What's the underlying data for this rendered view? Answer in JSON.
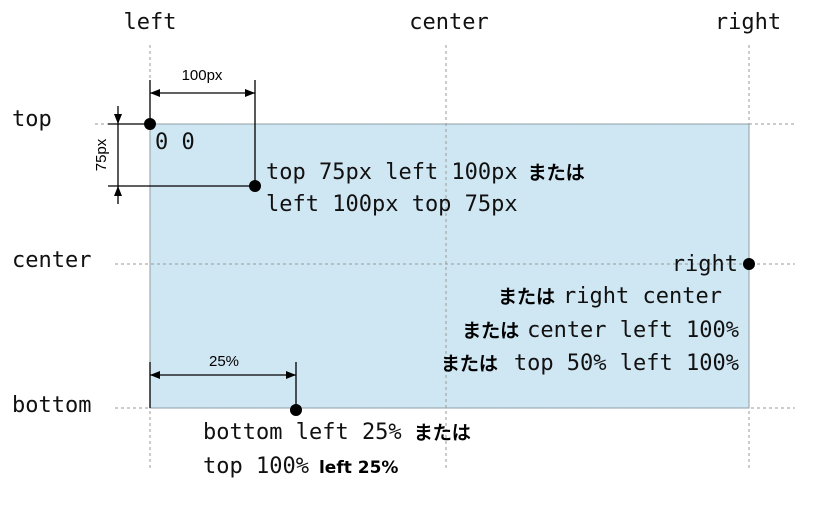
{
  "axis_labels": {
    "left": "left",
    "center_top": "center",
    "right": "right",
    "top": "top",
    "center_side": "center",
    "bottom": "bottom"
  },
  "dimensions": {
    "width_px": "100px",
    "height_px": "75px",
    "percent": "25%"
  },
  "box": {
    "fill": "#cfe6f3",
    "border": "#8aa0ad"
  },
  "examples": {
    "origin": "0 0",
    "point1_line1_code": "top 75px left 100px",
    "point1_line1_or": "または",
    "point1_line2_code": "left 100px top 75px",
    "right_label": "right",
    "right_alt1_or": "または",
    "right_alt1_code": "right center",
    "right_alt2_or": "または",
    "right_alt2_code": "center left 100%",
    "right_alt3_or": "または",
    "right_alt3_code": "top 50% left 100%",
    "bottom_line1_code": "bottom left 25%",
    "bottom_line1_or": "または",
    "bottom_line2_code": "top 100%",
    "bottom_line2_bold": "left 25%"
  }
}
